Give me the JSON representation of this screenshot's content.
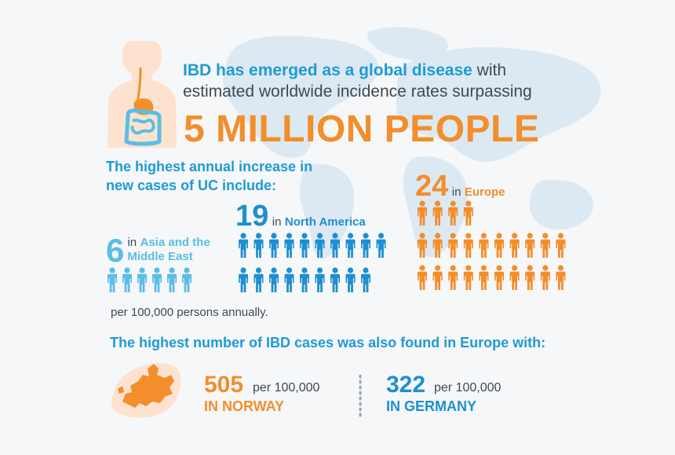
{
  "headline": {
    "highlight": "IBD has emerged as a global disease",
    "rest": " with",
    "line2": "estimated worldwide incidence rates surpassing",
    "big": "5 MILLION PEOPLE"
  },
  "uc_increase": {
    "title_line1": "The highest annual increase in",
    "title_line2": "new cases of UC include:",
    "note": "per 100,000 persons annually."
  },
  "regions": [
    {
      "count": 6,
      "number": "6",
      "connector": "in",
      "name_line1": "Asia and the",
      "name_line2": "Middle East",
      "color": "#5bbde6"
    },
    {
      "count": 19,
      "number": "19",
      "connector": "in",
      "name_line1": "North America",
      "name_line2": "",
      "color": "#1e8fd0"
    },
    {
      "count": 24,
      "number": "24",
      "connector": "in",
      "name_line1": "Europe",
      "name_line2": "",
      "color": "#f28e2b"
    }
  ],
  "europe": {
    "title": "The highest number of IBD cases was also found in Europe with:",
    "stats": [
      {
        "value": "505",
        "unit": "per 100,000",
        "country": "IN NORWAY",
        "color": "#f28e2b"
      },
      {
        "value": "322",
        "unit": "per 100,000",
        "country": "IN GERMANY",
        "color": "#1e8fd0"
      }
    ]
  },
  "icons": {
    "background": "world-map-icon",
    "torso": "digestive-system-icon",
    "people": "person-icon",
    "europe_map": "europe-map-icon"
  },
  "colors": {
    "blue_heading": "#1e9bd4",
    "orange": "#f28e2b",
    "text": "#3c4a55",
    "map": "#d9e9f3"
  }
}
